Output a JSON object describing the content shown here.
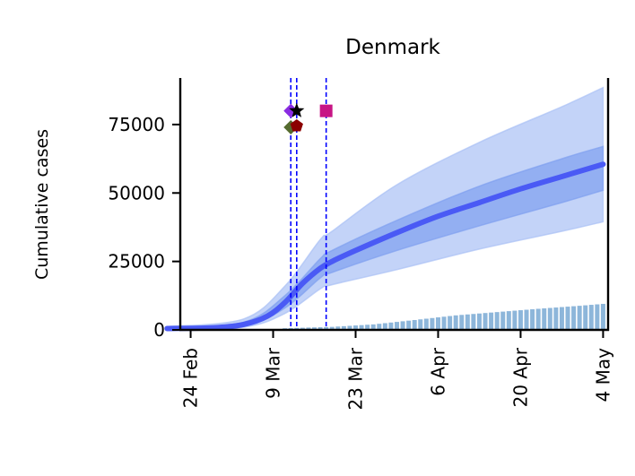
{
  "chart_data": {
    "type": "line",
    "title": "Denmark",
    "xlabel": "",
    "ylabel": "Cumulative cases",
    "x_range": [
      "2020-02-16",
      "2020-05-05"
    ],
    "ylim": [
      0,
      92000
    ],
    "y_ticks": [
      0,
      25000,
      50000,
      75000
    ],
    "x_ticks": [
      {
        "date": "2020-02-24",
        "label": "24 Feb"
      },
      {
        "date": "2020-03-09",
        "label": "9 Mar"
      },
      {
        "date": "2020-03-23",
        "label": "23 Mar"
      },
      {
        "date": "2020-04-06",
        "label": "6 Apr"
      },
      {
        "date": "2020-04-20",
        "label": "20 Apr"
      },
      {
        "date": "2020-05-04",
        "label": "4 May"
      }
    ],
    "grid": false,
    "colors": {
      "median_line": "#4a5af5",
      "inner_band": "#7f9ff0",
      "outer_band": "#a9c1f5",
      "bars": "#8db6da",
      "interventions": "#0000ff"
    },
    "median": [
      {
        "date": "2020-02-20",
        "value": 500
      },
      {
        "date": "2020-02-28",
        "value": 800
      },
      {
        "date": "2020-03-04",
        "value": 2000
      },
      {
        "date": "2020-03-08",
        "value": 5000
      },
      {
        "date": "2020-03-11",
        "value": 10000
      },
      {
        "date": "2020-03-14",
        "value": 17000
      },
      {
        "date": "2020-03-17",
        "value": 22500
      },
      {
        "date": "2020-03-19",
        "value": 25000
      },
      {
        "date": "2020-03-23",
        "value": 29000
      },
      {
        "date": "2020-03-30",
        "value": 35500
      },
      {
        "date": "2020-04-06",
        "value": 41500
      },
      {
        "date": "2020-04-13",
        "value": 46500
      },
      {
        "date": "2020-04-20",
        "value": 51500
      },
      {
        "date": "2020-04-27",
        "value": 56000
      },
      {
        "date": "2020-05-04",
        "value": 60500
      }
    ],
    "inner_band": {
      "lower": [
        {
          "date": "2020-02-20",
          "value": 300
        },
        {
          "date": "2020-03-04",
          "value": 1500
        },
        {
          "date": "2020-03-11",
          "value": 8000
        },
        {
          "date": "2020-03-17",
          "value": 19000
        },
        {
          "date": "2020-03-19",
          "value": 21000
        },
        {
          "date": "2020-03-30",
          "value": 29000
        },
        {
          "date": "2020-04-13",
          "value": 38000
        },
        {
          "date": "2020-04-27",
          "value": 46500
        },
        {
          "date": "2020-05-04",
          "value": 51000
        }
      ],
      "upper": [
        {
          "date": "2020-02-20",
          "value": 700
        },
        {
          "date": "2020-03-04",
          "value": 2800
        },
        {
          "date": "2020-03-11",
          "value": 12500
        },
        {
          "date": "2020-03-17",
          "value": 26000
        },
        {
          "date": "2020-03-19",
          "value": 29000
        },
        {
          "date": "2020-03-30",
          "value": 40000
        },
        {
          "date": "2020-04-13",
          "value": 52500
        },
        {
          "date": "2020-04-27",
          "value": 62500
        },
        {
          "date": "2020-05-04",
          "value": 67000
        }
      ]
    },
    "outer_band": {
      "lower": [
        {
          "date": "2020-02-20",
          "value": 100
        },
        {
          "date": "2020-03-04",
          "value": 1000
        },
        {
          "date": "2020-03-11",
          "value": 6000
        },
        {
          "date": "2020-03-17",
          "value": 15000
        },
        {
          "date": "2020-03-19",
          "value": 16500
        },
        {
          "date": "2020-03-30",
          "value": 22000
        },
        {
          "date": "2020-04-13",
          "value": 29500
        },
        {
          "date": "2020-04-27",
          "value": 36000
        },
        {
          "date": "2020-05-04",
          "value": 39500
        }
      ],
      "upper": [
        {
          "date": "2020-02-20",
          "value": 1200
        },
        {
          "date": "2020-03-04",
          "value": 4000
        },
        {
          "date": "2020-03-11",
          "value": 16000
        },
        {
          "date": "2020-03-17",
          "value": 33000
        },
        {
          "date": "2020-03-19",
          "value": 36000
        },
        {
          "date": "2020-03-30",
          "value": 53000
        },
        {
          "date": "2020-04-13",
          "value": 68500
        },
        {
          "date": "2020-04-27",
          "value": 81500
        },
        {
          "date": "2020-05-04",
          "value": 88500
        }
      ]
    },
    "observed_cases": {
      "start": "2020-03-11",
      "end": "2020-05-04",
      "anchors": [
        {
          "date": "2020-03-11",
          "value": 600
        },
        {
          "date": "2020-03-19",
          "value": 1100
        },
        {
          "date": "2020-03-26",
          "value": 2000
        },
        {
          "date": "2020-04-02",
          "value": 3600
        },
        {
          "date": "2020-04-09",
          "value": 5300
        },
        {
          "date": "2020-04-16",
          "value": 6500
        },
        {
          "date": "2020-04-23",
          "value": 7700
        },
        {
          "date": "2020-04-30",
          "value": 8800
        },
        {
          "date": "2020-05-04",
          "value": 9500
        }
      ]
    },
    "interventions": [
      {
        "date": "2020-03-12",
        "markers": [
          {
            "shape": "diamond",
            "color": "#8a2be2",
            "value": 80000
          },
          {
            "shape": "diamond",
            "color": "#556b2f",
            "value": 74000
          }
        ]
      },
      {
        "date": "2020-03-13",
        "markers": [
          {
            "shape": "star",
            "color": "#000000",
            "value": 80000
          },
          {
            "shape": "pentagon",
            "color": "#8b0000",
            "value": 74500
          }
        ]
      },
      {
        "date": "2020-03-18",
        "markers": [
          {
            "shape": "square",
            "color": "#c71585",
            "value": 80000
          }
        ]
      }
    ]
  }
}
